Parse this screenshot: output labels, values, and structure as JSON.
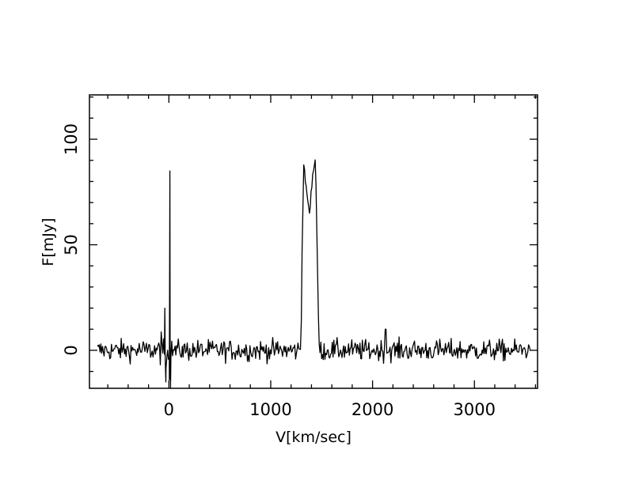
{
  "chart_data": {
    "type": "line",
    "title": "",
    "xlabel": "V[km/sec]",
    "ylabel": "F[mJy]",
    "xlim": [
      -780,
      3620
    ],
    "ylim": [
      -18,
      121
    ],
    "x_ticks": [
      0,
      1000,
      2000,
      3000
    ],
    "x_tick_labels": [
      "0",
      "1000",
      "2000",
      "3000"
    ],
    "y_ticks": [
      0,
      50,
      100
    ],
    "y_tick_labels": [
      "0",
      "50",
      "100"
    ],
    "grid": false,
    "legend": "none",
    "line_color": "#000000",
    "features": {
      "noise_rms": 2.5,
      "spike_near_zero": {
        "x": 10,
        "peak": 85
      },
      "negative_dips_near_zero": [
        -15,
        -12
      ],
      "double_horned_profile": {
        "x_start": 1290,
        "x_end": 1475,
        "horn_1": {
          "x": 1325,
          "y": 90
        },
        "horn_2": {
          "x": 1440,
          "y": 90
        },
        "trough": {
          "x": 1385,
          "y": 66
        }
      },
      "small_spike": {
        "x": 2130,
        "y": 10
      },
      "data_range_x": [
        -700,
        3550
      ]
    }
  }
}
